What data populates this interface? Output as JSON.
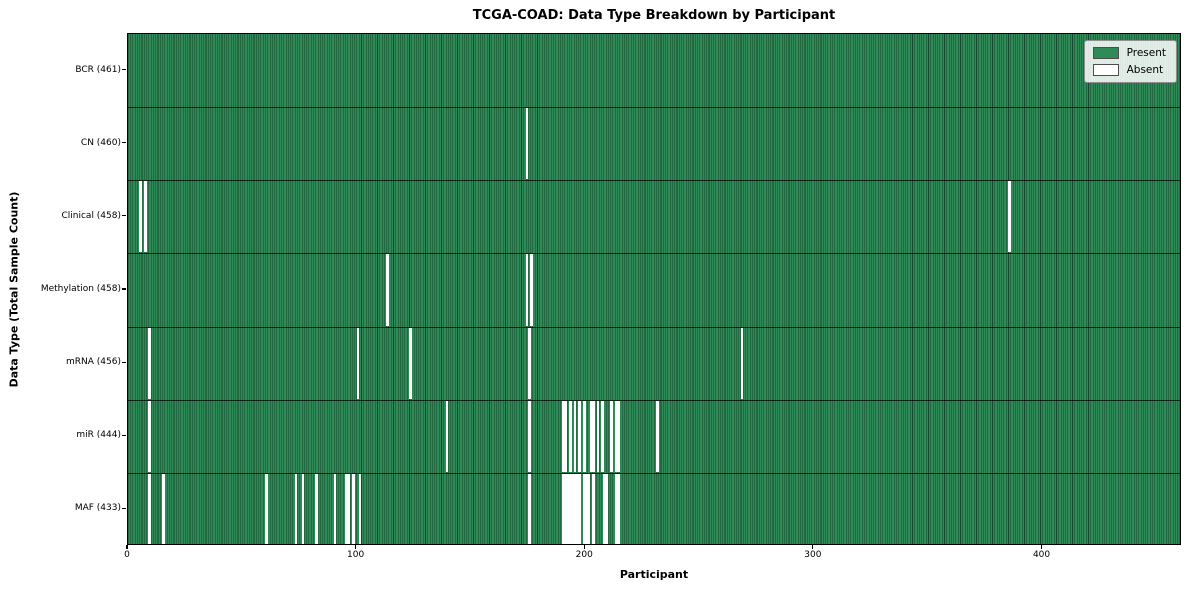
{
  "title": "TCGA-COAD: Data Type Breakdown by Participant",
  "x_axis_label": "Participant",
  "y_axis_label": "Data Type (Total Sample Count)",
  "legend": {
    "present_label": "Present",
    "absent_label": "Absent"
  },
  "colors": {
    "present": "#2e8b57",
    "absent": "#ffffff",
    "bar_edge": "#16472e",
    "plot_border": "#000000",
    "legend_border": "#8f8f8f"
  },
  "chart_data": {
    "type": "heatmap",
    "title": "TCGA-COAD: Data Type Breakdown by Participant",
    "xlabel": "Participant",
    "ylabel": "Data Type (Total Sample Count)",
    "x_ticks": [
      0,
      100,
      200,
      300,
      400
    ],
    "x_range": [
      0,
      461
    ],
    "n_participants": 461,
    "legend_entries": [
      "Present",
      "Absent"
    ],
    "legend_position": "upper right",
    "grid": false,
    "cell_values": "1 = present (green), 0 = absent (white); rows list absent participant indices",
    "rows": [
      {
        "label": "BCR (461)",
        "data_type": "BCR",
        "total_samples": 461,
        "absent_participants": []
      },
      {
        "label": "CN (460)",
        "data_type": "CN",
        "total_samples": 460,
        "absent_participants": [
          174
        ]
      },
      {
        "label": "Clinical (458)",
        "data_type": "Clinical",
        "total_samples": 458,
        "absent_participants": [
          5,
          7,
          385
        ]
      },
      {
        "label": "Methylation (458)",
        "data_type": "Methylation",
        "total_samples": 458,
        "absent_participants": [
          113,
          174,
          176
        ]
      },
      {
        "label": "mRNA (456)",
        "data_type": "mRNA",
        "total_samples": 456,
        "absent_participants": [
          9,
          100,
          123,
          175,
          268
        ]
      },
      {
        "label": "miR (444)",
        "data_type": "miR",
        "total_samples": 444,
        "absent_participants": [
          9,
          139,
          175,
          190,
          191,
          193,
          195,
          197,
          199,
          202,
          203,
          205,
          207,
          211,
          213,
          214,
          231
        ]
      },
      {
        "label": "MAF (433)",
        "data_type": "MAF",
        "total_samples": 433,
        "absent_participants": [
          9,
          15,
          60,
          73,
          76,
          82,
          90,
          95,
          96,
          98,
          101,
          175,
          190,
          191,
          192,
          193,
          194,
          195,
          196,
          197,
          199,
          200,
          201,
          203,
          208,
          209,
          213,
          214
        ]
      }
    ]
  }
}
